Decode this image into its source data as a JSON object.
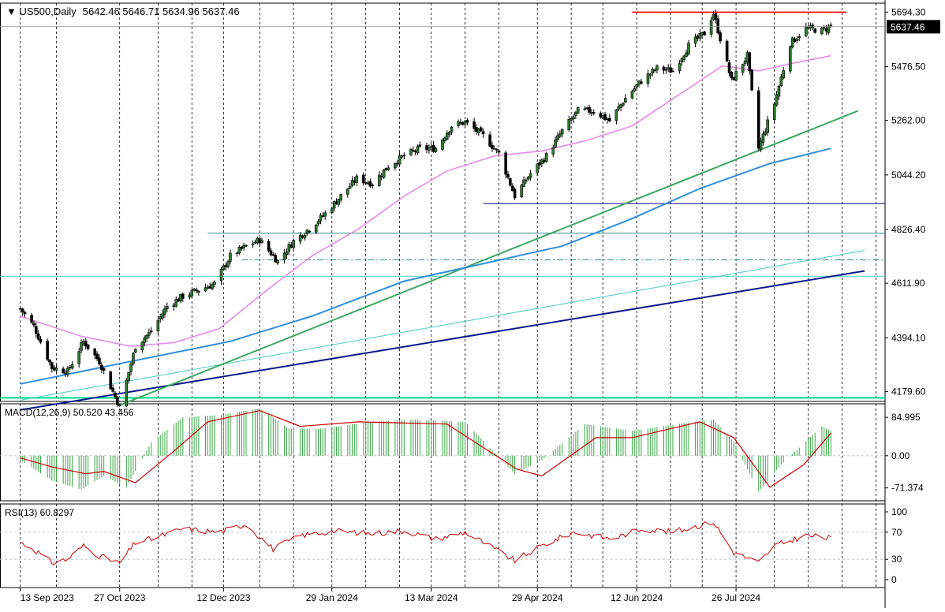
{
  "header": {
    "title": "US500,Daily",
    "ohlc_text": "5642.46 5646.71 5634.96 5637.46"
  },
  "chart_data": [
    {
      "type": "candlestick",
      "symbol": "US500",
      "timeframe": "Daily",
      "ohlc": {
        "open": 5642.46,
        "high": 5646.71,
        "low": 5634.96,
        "close": 5637.46
      },
      "current_price_label": "5637.46",
      "y_ticks": [
        "5694.30",
        "5476.50",
        "5262.00",
        "5044.20",
        "4826.40",
        "4611.90",
        "4394.10",
        "4179.60"
      ],
      "ylim": [
        4140,
        5730
      ],
      "x_ticks": [
        "13 Sep 2023",
        "27 Oct 2023",
        "12 Dec 2023",
        "29 Jan 2024",
        "13 Mar 2024",
        "29 Apr 2024",
        "12 Jun 2024",
        "26 Jul 2024"
      ],
      "close_path": [
        [
          "2023-09-13",
          4510
        ],
        [
          "2023-09-19",
          4440
        ],
        [
          "2023-09-27",
          4275
        ],
        [
          "2023-10-04",
          4260
        ],
        [
          "2023-10-11",
          4380
        ],
        [
          "2023-10-18",
          4300
        ],
        [
          "2023-10-27",
          4118
        ],
        [
          "2023-11-03",
          4360
        ],
        [
          "2023-11-10",
          4420
        ],
        [
          "2023-11-17",
          4520
        ],
        [
          "2023-11-24",
          4560
        ],
        [
          "2023-12-01",
          4585
        ],
        [
          "2023-12-08",
          4610
        ],
        [
          "2023-12-15",
          4720
        ],
        [
          "2023-12-22",
          4760
        ],
        [
          "2023-12-28",
          4785
        ],
        [
          "2024-01-05",
          4700
        ],
        [
          "2024-01-12",
          4780
        ],
        [
          "2024-01-19",
          4830
        ],
        [
          "2024-01-26",
          4890
        ],
        [
          "2024-02-02",
          4960
        ],
        [
          "2024-02-09",
          5030
        ],
        [
          "2024-02-16",
          5010
        ],
        [
          "2024-02-23",
          5080
        ],
        [
          "2024-03-01",
          5120
        ],
        [
          "2024-03-08",
          5150
        ],
        [
          "2024-03-15",
          5150
        ],
        [
          "2024-03-22",
          5240
        ],
        [
          "2024-03-28",
          5255
        ],
        [
          "2024-04-05",
          5200
        ],
        [
          "2024-04-12",
          5130
        ],
        [
          "2024-04-19",
          4960
        ],
        [
          "2024-04-26",
          5050
        ],
        [
          "2024-05-03",
          5120
        ],
        [
          "2024-05-10",
          5220
        ],
        [
          "2024-05-17",
          5300
        ],
        [
          "2024-05-24",
          5300
        ],
        [
          "2024-05-31",
          5260
        ],
        [
          "2024-06-07",
          5350
        ],
        [
          "2024-06-14",
          5420
        ],
        [
          "2024-06-21",
          5470
        ],
        [
          "2024-06-28",
          5460
        ],
        [
          "2024-07-05",
          5560
        ],
        [
          "2024-07-12",
          5610
        ],
        [
          "2024-07-16",
          5690
        ],
        [
          "2024-07-24",
          5420
        ],
        [
          "2024-07-31",
          5520
        ],
        [
          "2024-08-05",
          5150
        ],
        [
          "2024-08-12",
          5330
        ],
        [
          "2024-08-19",
          5570
        ],
        [
          "2024-08-26",
          5630
        ],
        [
          "2024-09-02",
          5620
        ],
        [
          "2024-09-06",
          5637
        ]
      ],
      "indicators": {
        "ma_pink": [
          [
            "2023-09-13",
            4480
          ],
          [
            "2023-10-10",
            4400
          ],
          [
            "2023-11-01",
            4360
          ],
          [
            "2023-11-20",
            4375
          ],
          [
            "2023-12-10",
            4430
          ],
          [
            "2024-01-01",
            4590
          ],
          [
            "2024-01-20",
            4720
          ],
          [
            "2024-02-10",
            4830
          ],
          [
            "2024-03-01",
            4960
          ],
          [
            "2024-03-20",
            5060
          ],
          [
            "2024-04-10",
            5120
          ],
          [
            "2024-05-01",
            5140
          ],
          [
            "2024-05-20",
            5180
          ],
          [
            "2024-06-10",
            5240
          ],
          [
            "2024-06-30",
            5360
          ],
          [
            "2024-07-20",
            5480
          ],
          [
            "2024-08-05",
            5460
          ],
          [
            "2024-08-20",
            5490
          ],
          [
            "2024-09-06",
            5520
          ]
        ],
        "ma_blue": [
          [
            "2023-09-13",
            4210
          ],
          [
            "2023-11-01",
            4300
          ],
          [
            "2023-12-15",
            4380
          ],
          [
            "2024-01-20",
            4480
          ],
          [
            "2024-03-01",
            4620
          ],
          [
            "2024-04-10",
            4700
          ],
          [
            "2024-05-10",
            4760
          ],
          [
            "2024-06-10",
            4870
          ],
          [
            "2024-07-10",
            4990
          ],
          [
            "2024-08-10",
            5090
          ],
          [
            "2024-09-06",
            5150
          ]
        ]
      },
      "horizontal_levels": [
        {
          "value": 5694,
          "color": "#ff0000"
        },
        {
          "value": 4930,
          "color": "#000080"
        },
        {
          "value": 4812,
          "color": "#2e8b8b"
        },
        {
          "value": 4705,
          "color": "#2e8b8b",
          "dash": true
        },
        {
          "value": 4640,
          "color": "#48d1cc"
        },
        {
          "value": 4154,
          "color": "#00e08a"
        }
      ],
      "trendlines": [
        {
          "from": [
            "2023-09-13",
            4106
          ],
          "to": [
            "2024-09-21",
            4661
          ],
          "color": "#0b1a8c"
        },
        {
          "from": [
            "2023-09-13",
            4145
          ],
          "to": [
            "2024-09-21",
            4743
          ],
          "color": "#48c9c9"
        },
        {
          "from": [
            "2023-10-27",
            4125
          ],
          "to": [
            "2024-09-18",
            5300
          ],
          "color": "#3aa860"
        }
      ]
    },
    {
      "type": "bar",
      "title": "MACD(12,26,9) 50.520 43.456",
      "y_ticks": [
        "84.995",
        "0.00",
        "-71.374"
      ],
      "ylim": [
        -100,
        115
      ],
      "histogram_path": [
        [
          "2023-09-13",
          -10
        ],
        [
          "2023-09-27",
          -55
        ],
        [
          "2023-10-10",
          -75
        ],
        [
          "2023-10-20",
          -45
        ],
        [
          "2023-10-30",
          -70
        ],
        [
          "2023-11-10",
          30
        ],
        [
          "2023-11-24",
          85
        ],
        [
          "2023-12-10",
          90
        ],
        [
          "2023-12-28",
          105
        ],
        [
          "2024-01-10",
          60
        ],
        [
          "2024-01-25",
          60
        ],
        [
          "2024-02-15",
          75
        ],
        [
          "2024-03-05",
          80
        ],
        [
          "2024-03-28",
          75
        ],
        [
          "2024-04-19",
          -40
        ],
        [
          "2024-05-01",
          -10
        ],
        [
          "2024-05-20",
          70
        ],
        [
          "2024-06-10",
          55
        ],
        [
          "2024-06-30",
          70
        ],
        [
          "2024-07-16",
          80
        ],
        [
          "2024-07-25",
          30
        ],
        [
          "2024-08-05",
          -80
        ],
        [
          "2024-08-15",
          -20
        ],
        [
          "2024-09-02",
          65
        ],
        [
          "2024-09-06",
          55
        ]
      ],
      "signal_path": [
        [
          "2023-09-13",
          -5
        ],
        [
          "2023-09-27",
          -25
        ],
        [
          "2023-10-12",
          -40
        ],
        [
          "2023-10-20",
          -35
        ],
        [
          "2023-11-03",
          -60
        ],
        [
          "2023-11-20",
          10
        ],
        [
          "2023-12-05",
          75
        ],
        [
          "2023-12-28",
          100
        ],
        [
          "2024-01-15",
          65
        ],
        [
          "2024-02-10",
          75
        ],
        [
          "2024-03-20",
          70
        ],
        [
          "2024-04-20",
          -30
        ],
        [
          "2024-05-01",
          -45
        ],
        [
          "2024-05-25",
          40
        ],
        [
          "2024-06-10",
          40
        ],
        [
          "2024-07-10",
          75
        ],
        [
          "2024-07-25",
          40
        ],
        [
          "2024-08-10",
          -70
        ],
        [
          "2024-08-25",
          -20
        ],
        [
          "2024-09-06",
          50
        ]
      ]
    },
    {
      "type": "line",
      "title": "RSI(13) 60.8297",
      "y_ticks": [
        "100",
        "70",
        "30",
        "0"
      ],
      "ylim": [
        0,
        100
      ],
      "levels": [
        70,
        30
      ],
      "path": [
        [
          "2023-09-13",
          55
        ],
        [
          "2023-09-19",
          45
        ],
        [
          "2023-09-27",
          25
        ],
        [
          "2023-10-04",
          30
        ],
        [
          "2023-10-11",
          50
        ],
        [
          "2023-10-18",
          35
        ],
        [
          "2023-10-27",
          24
        ],
        [
          "2023-11-03",
          55
        ],
        [
          "2023-11-10",
          60
        ],
        [
          "2023-11-24",
          75
        ],
        [
          "2023-12-10",
          70
        ],
        [
          "2023-12-22",
          82
        ],
        [
          "2024-01-03",
          45
        ],
        [
          "2024-01-15",
          65
        ],
        [
          "2024-01-30",
          72
        ],
        [
          "2024-02-15",
          68
        ],
        [
          "2024-03-01",
          72
        ],
        [
          "2024-03-15",
          60
        ],
        [
          "2024-03-28",
          70
        ],
        [
          "2024-04-05",
          55
        ],
        [
          "2024-04-19",
          28
        ],
        [
          "2024-05-01",
          50
        ],
        [
          "2024-05-15",
          70
        ],
        [
          "2024-06-01",
          60
        ],
        [
          "2024-06-14",
          75
        ],
        [
          "2024-06-28",
          70
        ],
        [
          "2024-07-16",
          85
        ],
        [
          "2024-07-25",
          40
        ],
        [
          "2024-08-05",
          25
        ],
        [
          "2024-08-12",
          50
        ],
        [
          "2024-08-26",
          65
        ],
        [
          "2024-09-06",
          61
        ]
      ]
    }
  ]
}
